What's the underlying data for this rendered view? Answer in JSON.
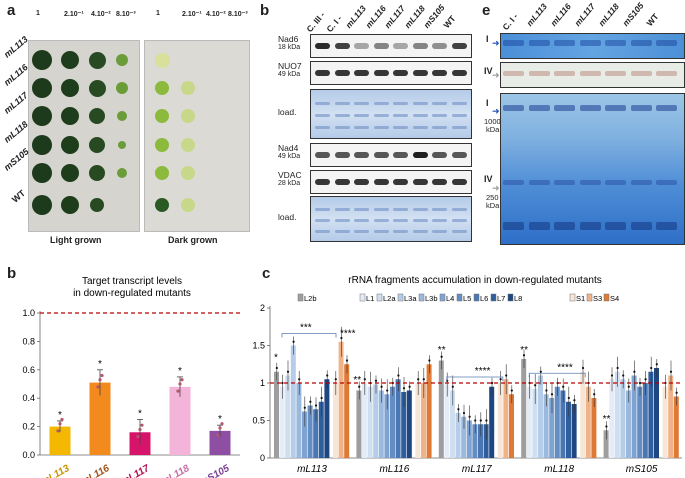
{
  "panel_a": {
    "label": "a",
    "dilutions": [
      "1",
      "2.10⁻¹",
      "4.10⁻²",
      "8.10⁻³"
    ],
    "strains": [
      "mL113",
      "mL116",
      "mL117",
      "mL118",
      "mS105",
      "WT"
    ],
    "light_caption": "Light grown",
    "dark_caption": "Dark grown"
  },
  "panel_b_blot": {
    "label": "b",
    "lanes": [
      "C. III -",
      "C. I -",
      "mL113",
      "mL116",
      "mL117",
      "mL118",
      "mS105",
      "WT"
    ],
    "rows": [
      {
        "name": "Nad6",
        "size": "18 kDa"
      },
      {
        "name": "NUO7",
        "size": "49 kDa"
      },
      {
        "name": "load.",
        "size": ""
      },
      {
        "name": "Nad4",
        "size": "49 kDa"
      },
      {
        "name": "VDAC",
        "size": "28 kDa"
      },
      {
        "name": "load.",
        "size": ""
      }
    ]
  },
  "panel_e": {
    "label": "e",
    "lanes": [
      "C. I -",
      "mL113",
      "mL116",
      "mL117",
      "mL118",
      "mS105",
      "WT"
    ],
    "marker_I": "I",
    "marker_IV": "IV",
    "size_1000": "1000",
    "size_1000_unit": "kDa",
    "size_250": "250",
    "size_250_unit": "kDa"
  },
  "panel_b_chart": {
    "label": "b",
    "chart_data": {
      "type": "bar",
      "title": "Target transcript levels in down-regulated mutants",
      "categories": [
        "mL113",
        "mL116",
        "mL117",
        "mL118",
        "mS105"
      ],
      "values": [
        0.2,
        0.51,
        0.16,
        0.48,
        0.17
      ],
      "errors": [
        0.04,
        0.09,
        0.09,
        0.07,
        0.04
      ],
      "colors": [
        "#f5b800",
        "#f38a1e",
        "#d6146a",
        "#f4b3d8",
        "#8e4fa3"
      ],
      "label_colors": [
        "#c79600",
        "#a0521a",
        "#b0104f",
        "#c86ea6",
        "#7a3f93"
      ],
      "significance": [
        "*",
        "*",
        "*",
        "*",
        "*"
      ],
      "ylim": [
        0,
        1.0
      ],
      "yticks": [
        "0.0",
        "0.2",
        "0.4",
        "0.6",
        "0.8",
        "1.0"
      ],
      "reference_line": 1.0
    }
  },
  "panel_c": {
    "label": "c",
    "chart_data": {
      "type": "bar",
      "title": "rRNA fragments accumulation in down-regulated mutants",
      "categories": [
        "mL113",
        "mL116",
        "mL117",
        "mL118",
        "mS105"
      ],
      "ylim": [
        0,
        2
      ],
      "yticks": [
        "0",
        "0.5",
        "1",
        "1.5",
        "2"
      ],
      "reference_line": 1.0,
      "series": [
        {
          "name": "L2b",
          "color": "#9e9e9e",
          "values": [
            1.15,
            0.9,
            1.3,
            1.32,
            0.37
          ]
        },
        {
          "name": "L1",
          "color": "#e3ecf7",
          "values": [
            0.95,
            1.0,
            0.98,
            0.95,
            1.05
          ]
        },
        {
          "name": "L2a",
          "color": "#cfdff0",
          "values": [
            1.1,
            0.95,
            0.9,
            0.92,
            1.15
          ]
        },
        {
          "name": "L3a",
          "color": "#b5cde8",
          "values": [
            1.5,
            0.98,
            0.6,
            1.1,
            1.05
          ]
        },
        {
          "name": "L3b",
          "color": "#9ab9dd",
          "values": [
            1.0,
            0.9,
            0.55,
            0.85,
            0.9
          ]
        },
        {
          "name": "L4",
          "color": "#7fa3d1",
          "values": [
            0.62,
            0.85,
            0.5,
            0.8,
            1.1
          ]
        },
        {
          "name": "L5",
          "color": "#648dc4",
          "values": [
            0.7,
            0.95,
            0.45,
            0.95,
            0.95
          ]
        },
        {
          "name": "L6",
          "color": "#4a76b4",
          "values": [
            0.65,
            1.05,
            0.45,
            0.9,
            1.0
          ]
        },
        {
          "name": "L7",
          "color": "#2f5e9c",
          "values": [
            0.75,
            0.88,
            0.45,
            0.75,
            1.15
          ]
        },
        {
          "name": "L8",
          "color": "#1e4680",
          "values": [
            1.05,
            0.9,
            0.95,
            0.72,
            1.2
          ]
        },
        {
          "name": "S1",
          "color": "#f7e6d8",
          "values": [
            1.0,
            1.0,
            1.0,
            1.15,
            0.95
          ]
        },
        {
          "name": "S3",
          "color": "#f0b388",
          "values": [
            1.55,
            1.0,
            1.05,
            0.95,
            1.1
          ]
        },
        {
          "name": "S4",
          "color": "#de7a36",
          "values": [
            1.25,
            1.25,
            0.85,
            0.8,
            0.82
          ]
        }
      ],
      "significance": [
        {
          "group": "mL113",
          "text": "*"
        },
        {
          "group": "mL113",
          "text": "***"
        },
        {
          "group": "mL113",
          "text": "****"
        },
        {
          "group": "mL116",
          "text": "**"
        },
        {
          "group": "mL117",
          "text": "**"
        },
        {
          "group": "mL117",
          "text": "****"
        },
        {
          "group": "mL118",
          "text": "**"
        },
        {
          "group": "mL118",
          "text": "****"
        },
        {
          "group": "mS105",
          "text": "**"
        }
      ]
    }
  }
}
